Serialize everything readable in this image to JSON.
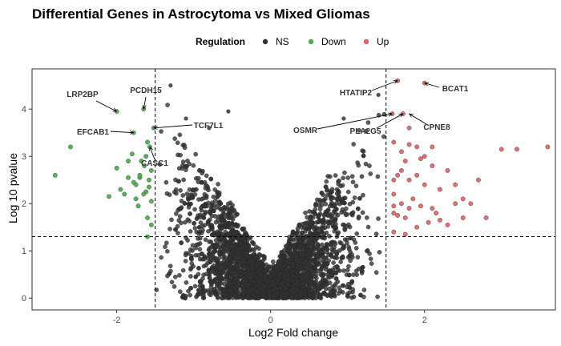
{
  "chart_data": {
    "type": "scatter",
    "title": "Differential Genes in Astrocytoma vs Mixed Gliomas",
    "xlabel": "Log2 Fold change",
    "ylabel": "Log 10 pvalue",
    "xlim": [
      -3.1,
      3.7
    ],
    "ylim": [
      -0.25,
      4.85
    ],
    "x_ticks": [
      -2,
      0,
      2
    ],
    "y_ticks": [
      0,
      1,
      2,
      3,
      4
    ],
    "x_tick_labels": [
      "-2",
      "0",
      "2"
    ],
    "y_tick_labels": [
      "0",
      "1",
      "2",
      "3",
      "4"
    ],
    "fold_change_cutoff": 1.5,
    "pvalue_line": 1.3,
    "grid": false,
    "legend": {
      "title": "Regulation",
      "position": "top",
      "items": [
        {
          "label": "NS",
          "color": "#333333"
        },
        {
          "label": "Down",
          "color": "#4daf4a"
        },
        {
          "label": "Up",
          "color": "#e06666"
        }
      ]
    },
    "ns_points": {
      "count": 3500,
      "note_hidden": true
    },
    "series": [
      {
        "name": "Down",
        "color": "#4daf4a",
        "points": [
          [
            -2.8,
            2.6
          ],
          [
            -2.6,
            3.2
          ],
          [
            -2.1,
            2.15
          ],
          [
            -1.95,
            2.3
          ],
          [
            -1.85,
            2.55
          ],
          [
            -1.8,
            3.05
          ],
          [
            -1.75,
            2.1
          ],
          [
            -1.7,
            2.55
          ],
          [
            -1.68,
            2.9
          ],
          [
            -1.62,
            2.25
          ],
          [
            -1.6,
            3.3
          ],
          [
            -1.58,
            2.5
          ],
          [
            -1.55,
            2.05
          ],
          [
            -1.75,
            2.4
          ],
          [
            -1.65,
            2.2
          ],
          [
            -1.72,
            1.95
          ],
          [
            -1.6,
            1.7
          ],
          [
            -1.55,
            1.55
          ],
          [
            -1.6,
            1.3
          ],
          [
            -1.7,
            2.6
          ],
          [
            -1.85,
            2.9
          ],
          [
            -2.0,
            2.75
          ],
          [
            -1.9,
            2.2
          ],
          [
            -1.62,
            3.0
          ],
          [
            -1.58,
            2.35
          ],
          [
            -1.64,
            2.8
          ],
          [
            -1.78,
            2.45
          ],
          [
            -1.55,
            2.7
          ],
          [
            -1.52,
            3.6
          ],
          [
            -2.0,
            3.95
          ],
          [
            -1.65,
            4.0
          ],
          [
            -1.78,
            3.5
          ],
          [
            -1.57,
            3.2
          ]
        ]
      },
      {
        "name": "Up",
        "color": "#e06666",
        "points": [
          [
            1.65,
            4.6
          ],
          [
            2.0,
            4.55
          ],
          [
            1.58,
            3.9
          ],
          [
            1.72,
            3.9
          ],
          [
            1.6,
            3.3
          ],
          [
            1.7,
            3.1
          ],
          [
            1.8,
            3.25
          ],
          [
            1.9,
            3.2
          ],
          [
            2.0,
            3.0
          ],
          [
            2.1,
            3.2
          ],
          [
            1.75,
            2.9
          ],
          [
            1.65,
            2.6
          ],
          [
            1.6,
            2.5
          ],
          [
            1.8,
            2.5
          ],
          [
            1.9,
            2.6
          ],
          [
            2.0,
            2.4
          ],
          [
            2.2,
            2.3
          ],
          [
            2.3,
            2.7
          ],
          [
            2.5,
            2.1
          ],
          [
            2.7,
            2.5
          ],
          [
            2.4,
            2.0
          ],
          [
            2.6,
            2.0
          ],
          [
            1.6,
            2.2
          ],
          [
            1.7,
            2.0
          ],
          [
            1.85,
            2.1
          ],
          [
            1.95,
            1.95
          ],
          [
            2.1,
            1.9
          ],
          [
            1.6,
            1.8
          ],
          [
            1.75,
            1.7
          ],
          [
            1.9,
            1.5
          ],
          [
            2.05,
            1.6
          ],
          [
            2.2,
            1.65
          ],
          [
            1.6,
            1.4
          ],
          [
            1.75,
            1.35
          ],
          [
            1.6,
            1.95
          ],
          [
            2.15,
            1.8
          ],
          [
            2.8,
            1.7
          ],
          [
            1.65,
            1.75
          ],
          [
            1.8,
            1.9
          ],
          [
            2.3,
            1.55
          ],
          [
            2.5,
            1.7
          ],
          [
            3.6,
            3.2
          ],
          [
            3.0,
            3.15
          ],
          [
            3.2,
            3.15
          ],
          [
            2.1,
            2.8
          ],
          [
            2.4,
            2.4
          ],
          [
            1.7,
            2.7
          ],
          [
            1.8,
            3.6
          ],
          [
            1.95,
            2.95
          ]
        ]
      }
    ],
    "annotations": [
      {
        "label": "LRP2BP",
        "x": -2.0,
        "y": 3.95
      },
      {
        "label": "PCDH15",
        "x": -1.65,
        "y": 4.0
      },
      {
        "label": "EFCAB1",
        "x": -1.78,
        "y": 3.5
      },
      {
        "label": "TCF7L1",
        "x": -1.52,
        "y": 3.6
      },
      {
        "label": "CASC1",
        "x": -1.57,
        "y": 3.2
      },
      {
        "label": "HTATIP2",
        "x": 1.65,
        "y": 4.6
      },
      {
        "label": "BCAT1",
        "x": 2.0,
        "y": 4.55
      },
      {
        "label": "OSMR",
        "x": 1.58,
        "y": 3.9
      },
      {
        "label": "PLA2G5",
        "x": 1.72,
        "y": 3.9
      },
      {
        "label": "CPNE8",
        "x": 1.8,
        "y": 3.9
      }
    ]
  }
}
